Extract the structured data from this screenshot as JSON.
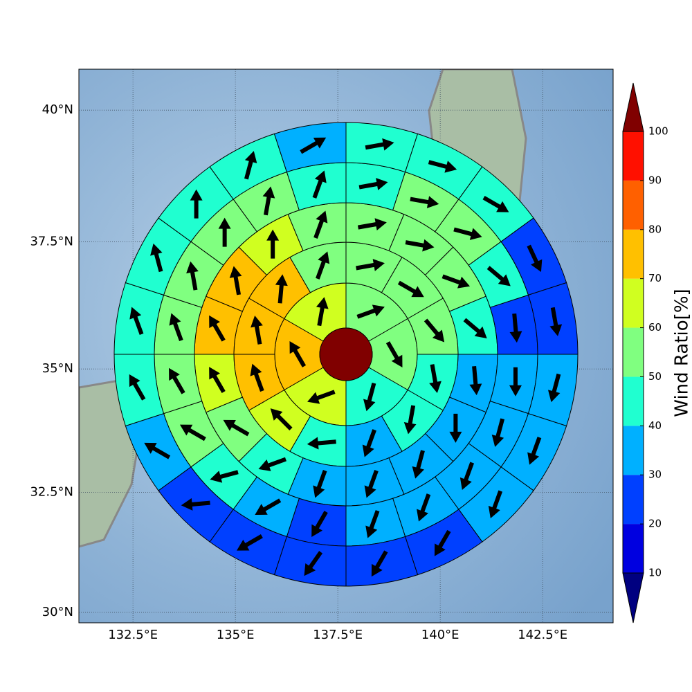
{
  "chart_data": {
    "type": "polar-grid-map",
    "xticks": [
      {
        "value": 132.5,
        "label": "132.5°E"
      },
      {
        "value": 135,
        "label": "135°E"
      },
      {
        "value": 137.5,
        "label": "137.5°E"
      },
      {
        "value": 140,
        "label": "140°E"
      },
      {
        "value": 142.5,
        "label": "142.5°E"
      }
    ],
    "yticks": [
      {
        "value": 30,
        "label": "30°N"
      },
      {
        "value": 32.5,
        "label": "32.5°N"
      },
      {
        "value": 35,
        "label": "35°N"
      },
      {
        "value": 37.5,
        "label": "37.5°N"
      },
      {
        "value": 40,
        "label": "40°N"
      }
    ],
    "xlim": [
      131.18,
      144.22
    ],
    "ylim": [
      29.78,
      40.76
    ],
    "projection": "mercator",
    "grid": true,
    "colorbar": {
      "label": "Wind Ratio[%]",
      "ticks": [
        10,
        20,
        30,
        40,
        50,
        60,
        70,
        80,
        90,
        100
      ],
      "extend": "both",
      "colors": [
        "#000080",
        "#0000e0",
        "#0040ff",
        "#00b0ff",
        "#20ffd0",
        "#80ff80",
        "#d0ff20",
        "#ffc000",
        "#ff6000",
        "#ff1000",
        "#800000"
      ]
    },
    "rings": [
      {
        "values": [
          55,
          55,
          45,
          65,
          75,
          65
        ],
        "directions": [
          70,
          150,
          195,
          250,
          330,
          10
        ]
      },
      {
        "values": [
          55,
          55,
          55,
          45,
          45,
          35,
          45,
          65,
          75,
          75,
          75,
          55
        ],
        "directions": [
          80,
          120,
          140,
          170,
          190,
          200,
          265,
          315,
          340,
          350,
          5,
          20
        ]
      },
      {
        "values": [
          55,
          55,
          55,
          45,
          35,
          35,
          35,
          35,
          35,
          45,
          55,
          65,
          75,
          75,
          65,
          55
        ],
        "directions": [
          80,
          100,
          110,
          130,
          175,
          180,
          195,
          200,
          200,
          250,
          300,
          330,
          330,
          350,
          0,
          20
        ]
      },
      {
        "values": [
          45,
          55,
          55,
          45,
          25,
          35,
          35,
          35,
          35,
          35,
          25,
          35,
          45,
          55,
          55,
          55,
          55,
          55,
          55,
          45
        ],
        "directions": [
          80,
          100,
          105,
          130,
          175,
          180,
          195,
          200,
          200,
          200,
          210,
          240,
          255,
          300,
          330,
          340,
          350,
          0,
          10,
          20
        ]
      },
      {
        "values": [
          45,
          45,
          45,
          25,
          25,
          35,
          35,
          35,
          25,
          25,
          25,
          25,
          25,
          35,
          45,
          45,
          45,
          45,
          45,
          35
        ],
        "directions": [
          80,
          105,
          120,
          155,
          170,
          195,
          200,
          200,
          210,
          210,
          215,
          240,
          265,
          300,
          330,
          340,
          345,
          0,
          15,
          60
        ]
      }
    ]
  }
}
